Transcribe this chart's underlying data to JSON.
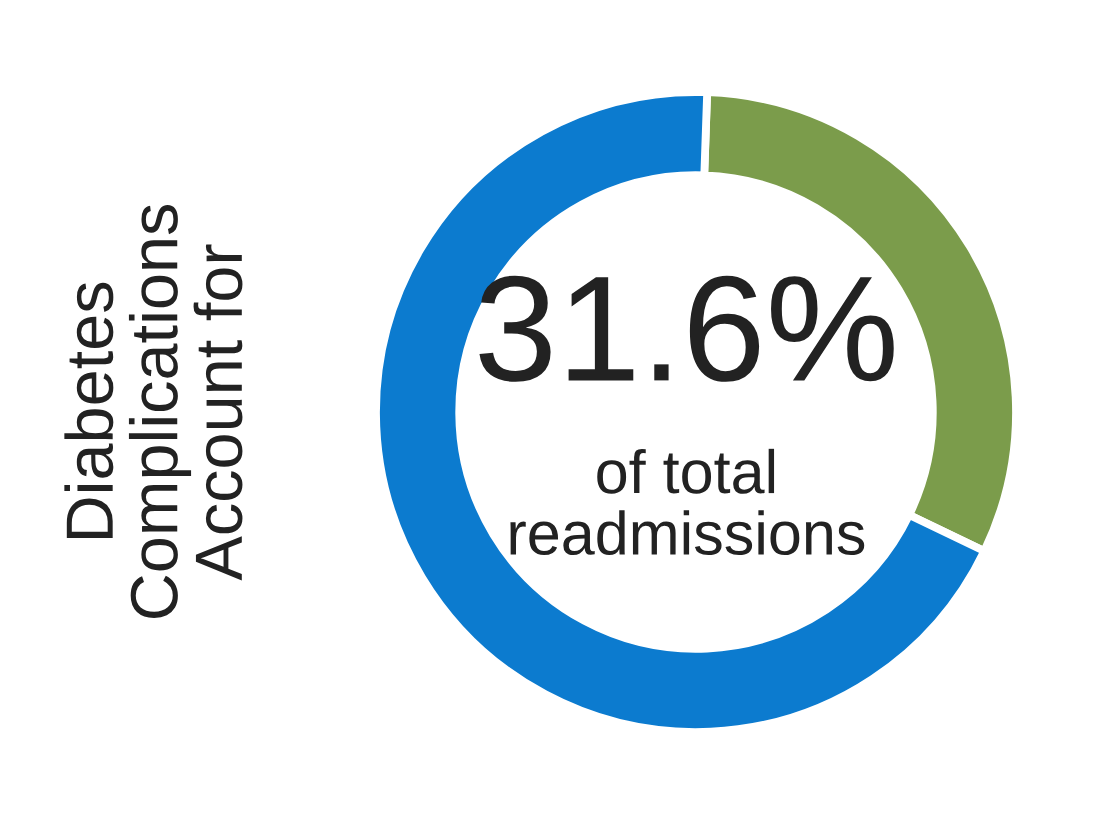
{
  "chart_data": {
    "type": "donut",
    "ylabel": "Diabetes\nComplications\nAccount for",
    "categories": [
      null,
      null
    ],
    "values": [
      31.6,
      68.4
    ],
    "colors": [
      "#7b9c4b",
      "#0c7bcf"
    ],
    "annotations": [
      "31.6%",
      "of total\nreadmissions"
    ],
    "legend": false
  }
}
